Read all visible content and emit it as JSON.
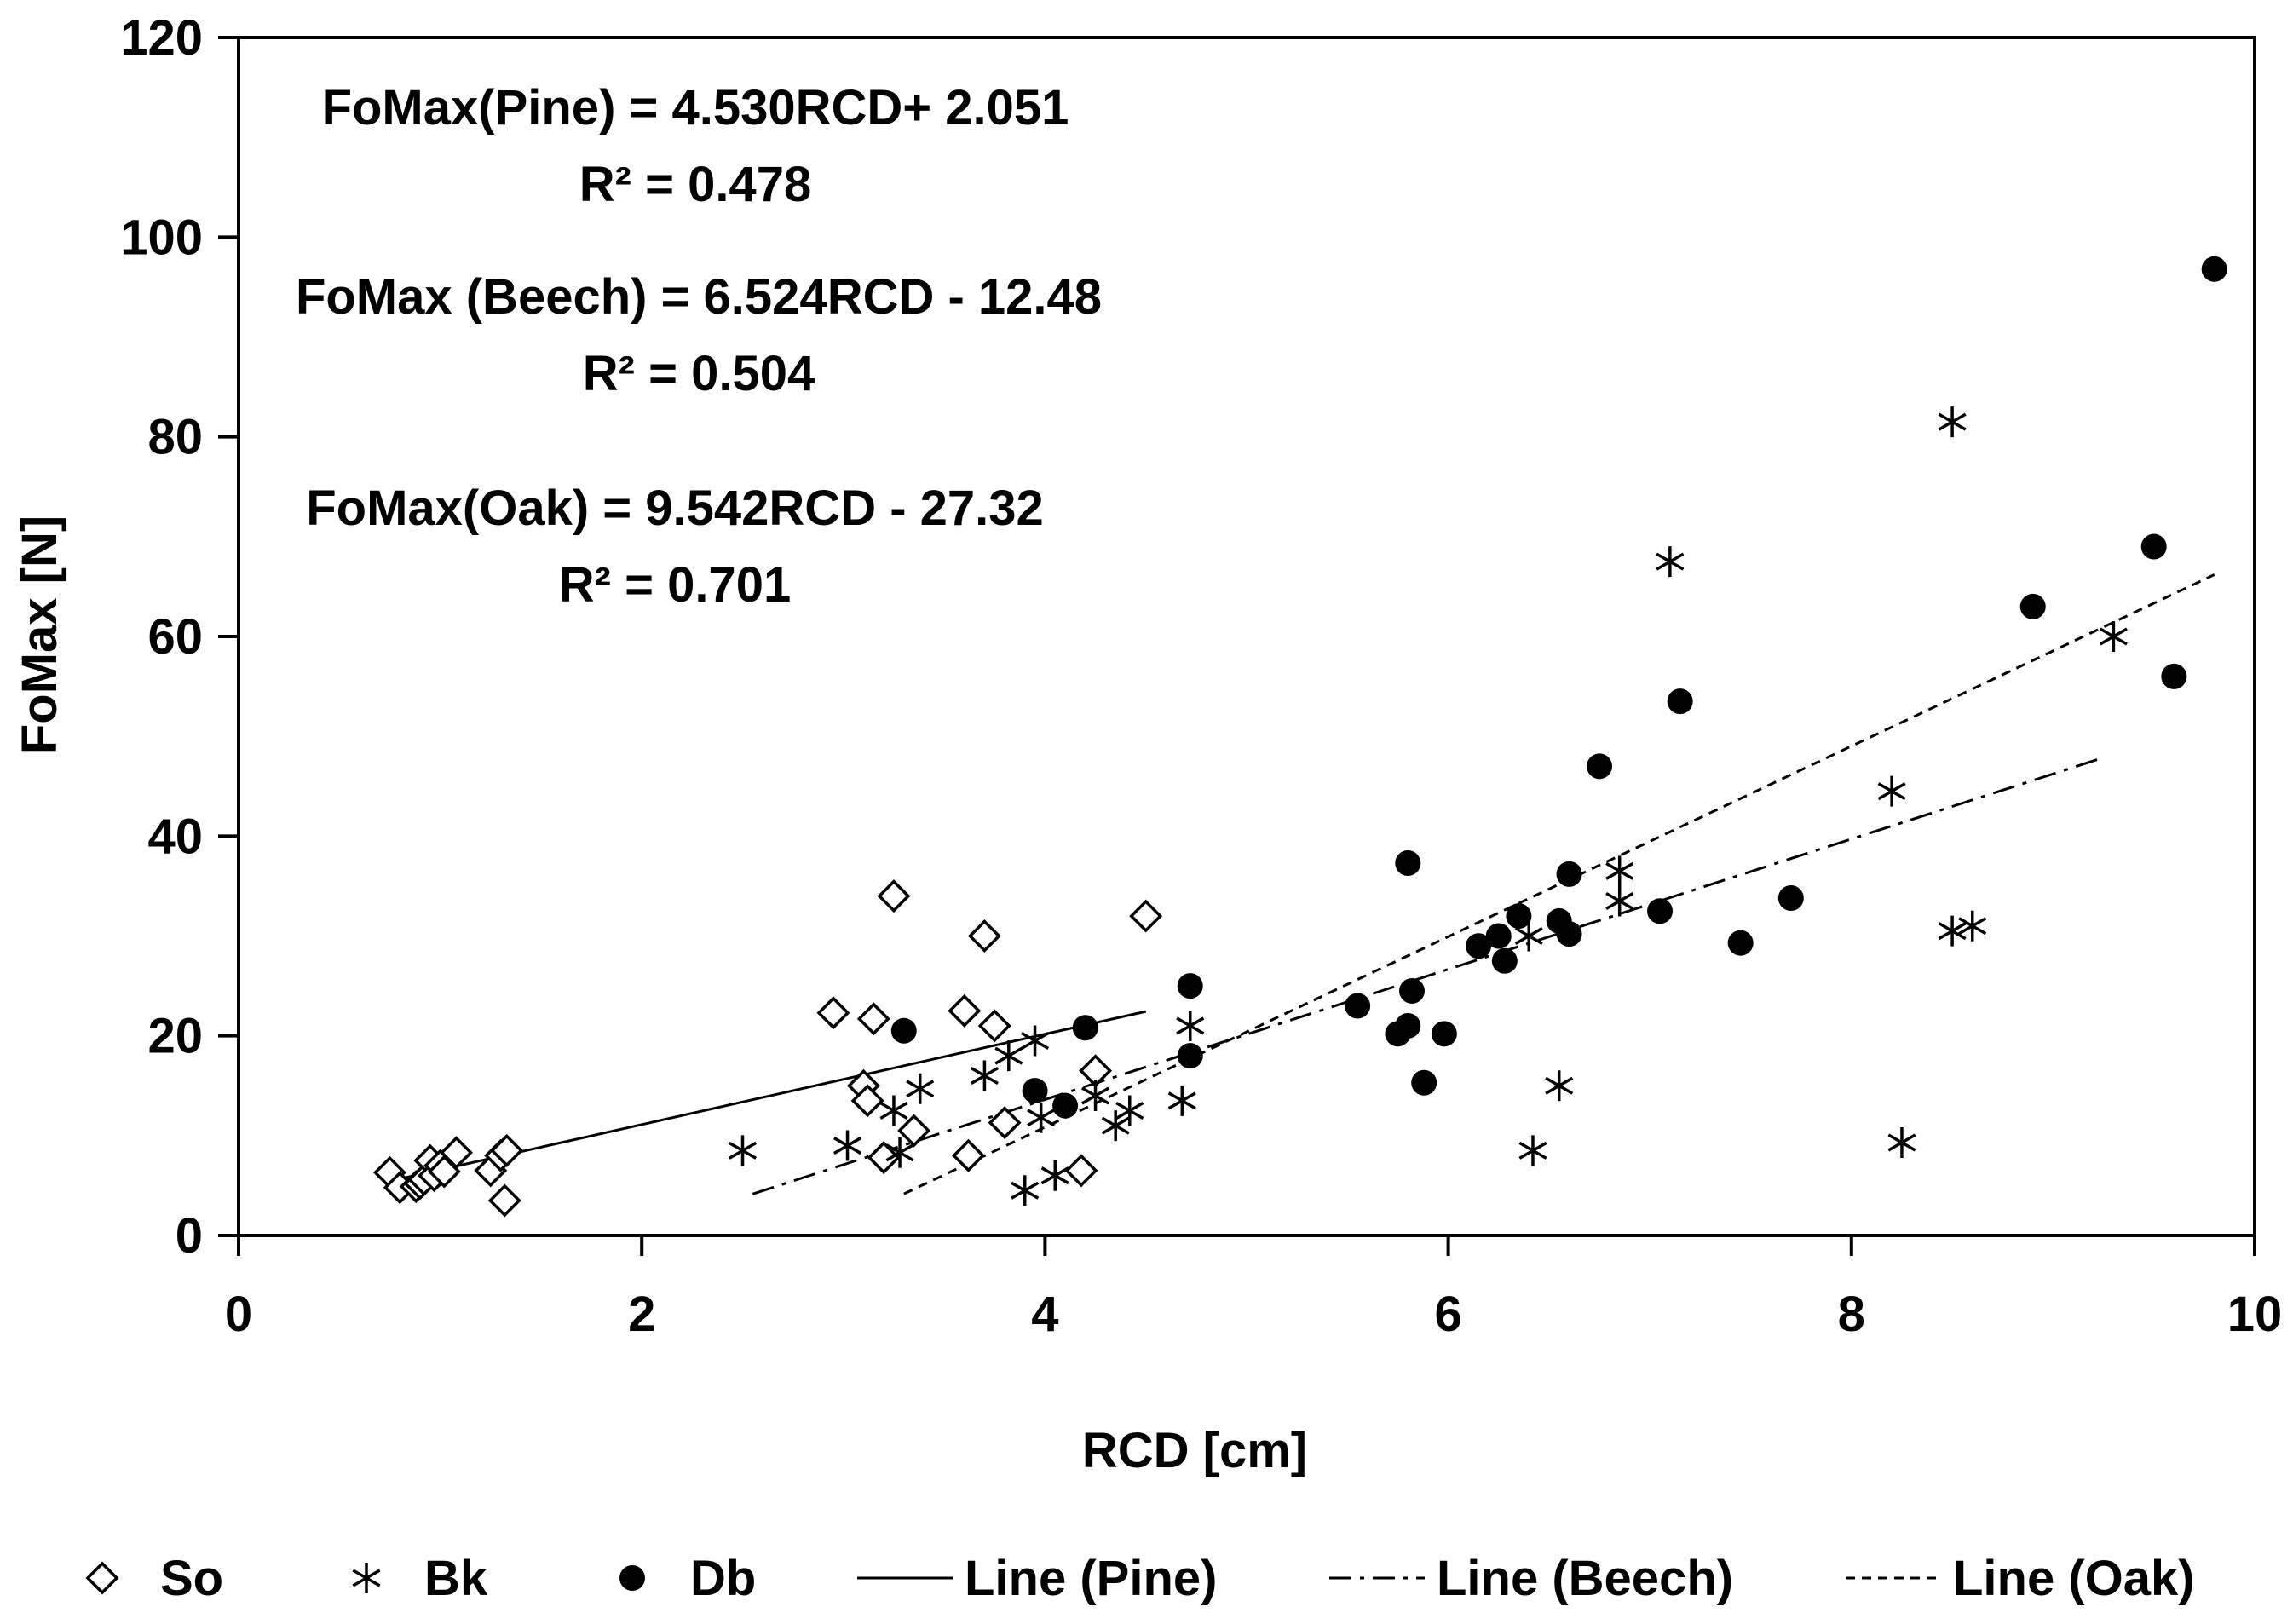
{
  "chart_data": {
    "type": "scatter",
    "title": "",
    "xlabel": "RCD [cm]",
    "ylabel": "FoMax [N]",
    "xlim": [
      0,
      10
    ],
    "ylim": [
      0,
      120
    ],
    "xticks": [
      0,
      2,
      4,
      6,
      8,
      10
    ],
    "yticks": [
      0,
      20,
      40,
      60,
      80,
      100,
      120
    ],
    "grid": false,
    "legend_position": "bottom",
    "series": [
      {
        "name": "So",
        "marker": "diamond-open",
        "points": [
          [
            0.75,
            6.3
          ],
          [
            0.8,
            4.8
          ],
          [
            0.88,
            4.9
          ],
          [
            0.9,
            5.2
          ],
          [
            0.92,
            5.6
          ],
          [
            0.95,
            7.5
          ],
          [
            0.97,
            6.0
          ],
          [
            1.0,
            7.0
          ],
          [
            1.02,
            6.4
          ],
          [
            1.08,
            8.3
          ],
          [
            1.25,
            6.5
          ],
          [
            1.3,
            8.0
          ],
          [
            1.32,
            3.5
          ],
          [
            1.33,
            8.5
          ],
          [
            2.95,
            22.3
          ],
          [
            3.1,
            15.0
          ],
          [
            3.12,
            13.5
          ],
          [
            3.15,
            21.7
          ],
          [
            3.2,
            7.8
          ],
          [
            3.25,
            34.0
          ],
          [
            3.35,
            10.5
          ],
          [
            3.6,
            22.5
          ],
          [
            3.62,
            8.0
          ],
          [
            3.7,
            30.0
          ],
          [
            3.75,
            21.0
          ],
          [
            3.8,
            11.3
          ],
          [
            4.18,
            6.5
          ],
          [
            4.25,
            16.5
          ],
          [
            4.5,
            32.0
          ]
        ]
      },
      {
        "name": "Bk",
        "marker": "asterisk",
        "points": [
          [
            2.5,
            8.5
          ],
          [
            3.02,
            9.0
          ],
          [
            3.25,
            12.5
          ],
          [
            3.28,
            8.3
          ],
          [
            3.38,
            14.7
          ],
          [
            3.7,
            16.0
          ],
          [
            3.82,
            18.0
          ],
          [
            3.9,
            4.5
          ],
          [
            3.95,
            19.5
          ],
          [
            3.98,
            11.8
          ],
          [
            4.05,
            6.0
          ],
          [
            4.25,
            14.0
          ],
          [
            4.35,
            11.0
          ],
          [
            4.42,
            12.5
          ],
          [
            4.68,
            13.5
          ],
          [
            4.72,
            21.0
          ],
          [
            6.4,
            30.0
          ],
          [
            6.42,
            8.5
          ],
          [
            6.55,
            15.0
          ],
          [
            6.85,
            36.5
          ],
          [
            6.85,
            33.5
          ],
          [
            7.1,
            67.5
          ],
          [
            8.2,
            44.5
          ],
          [
            8.25,
            9.3
          ],
          [
            8.5,
            81.5
          ],
          [
            8.5,
            30.5
          ],
          [
            8.6,
            31.0
          ],
          [
            9.3,
            60.0
          ]
        ]
      },
      {
        "name": "Db",
        "marker": "circle-filled",
        "points": [
          [
            3.3,
            20.5
          ],
          [
            3.95,
            14.5
          ],
          [
            4.1,
            13.0
          ],
          [
            4.2,
            20.8
          ],
          [
            4.72,
            25.0
          ],
          [
            4.72,
            18.0
          ],
          [
            5.55,
            23.0
          ],
          [
            5.75,
            20.2
          ],
          [
            5.8,
            37.3
          ],
          [
            5.8,
            21.0
          ],
          [
            5.82,
            24.5
          ],
          [
            5.88,
            15.3
          ],
          [
            5.98,
            20.2
          ],
          [
            6.15,
            29.0
          ],
          [
            6.25,
            30.0
          ],
          [
            6.28,
            27.5
          ],
          [
            6.35,
            32.0
          ],
          [
            6.55,
            31.5
          ],
          [
            6.6,
            30.2
          ],
          [
            6.6,
            36.2
          ],
          [
            6.75,
            47.0
          ],
          [
            7.05,
            32.5
          ],
          [
            7.15,
            53.5
          ],
          [
            7.45,
            29.3
          ],
          [
            7.7,
            33.8
          ],
          [
            8.9,
            63.0
          ],
          [
            9.5,
            69.0
          ],
          [
            9.6,
            56.0
          ],
          [
            9.8,
            96.8
          ]
        ]
      }
    ],
    "trendlines": [
      {
        "name": "Line (Pine)",
        "style": "solid",
        "slope": 4.53,
        "intercept": 2.051,
        "x_range": [
          0.75,
          4.5
        ]
      },
      {
        "name": "Line (Beech)",
        "style": "dash-dot",
        "slope": 6.524,
        "intercept": -12.48,
        "x_range": [
          2.55,
          9.25
        ]
      },
      {
        "name": "Line (Oak)",
        "style": "dashed",
        "slope": 9.542,
        "intercept": -27.32,
        "x_range": [
          3.3,
          9.8
        ]
      }
    ],
    "annotations": [
      {
        "equation": "FoMax(Pine) = 4.530RCD+ 2.051",
        "r2": "R² = 0.478"
      },
      {
        "equation": "FoMax (Beech) = 6.524RCD - 12.48",
        "r2": "R² = 0.504"
      },
      {
        "equation": "FoMax(Oak) = 9.542RCD - 27.32",
        "r2": "R² = 0.701"
      }
    ],
    "legend": [
      {
        "label": "So",
        "symbol": "diamond-open"
      },
      {
        "label": "Bk",
        "symbol": "asterisk"
      },
      {
        "label": "Db",
        "symbol": "circle-filled"
      },
      {
        "label": "Line (Pine)",
        "symbol": "line-solid"
      },
      {
        "label": "Line (Beech)",
        "symbol": "line-dash-dot"
      },
      {
        "label": "Line (Oak)",
        "symbol": "line-dashed"
      }
    ]
  }
}
